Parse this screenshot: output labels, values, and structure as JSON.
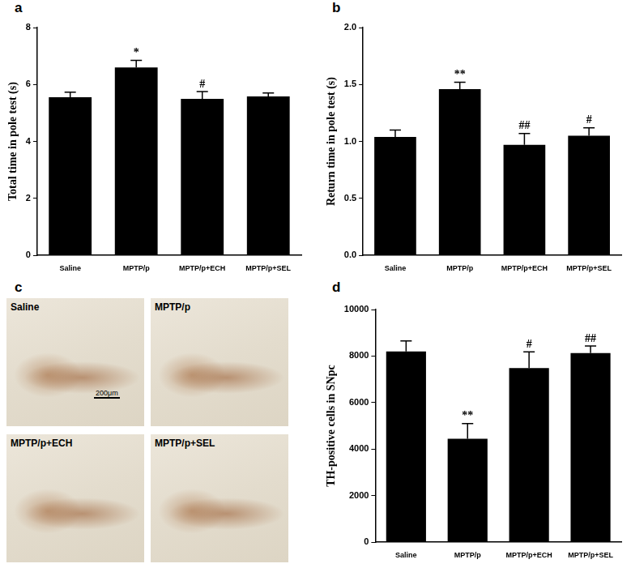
{
  "chart_data": [
    {
      "panel": "a",
      "type": "bar",
      "y_label": "Total time in pole test (s)",
      "categories": [
        "Saline",
        "MPTP/p",
        "MPTP/p+ECH",
        "MPTP/p+SEL"
      ],
      "values": [
        5.55,
        6.6,
        5.5,
        5.58
      ],
      "errors": [
        0.18,
        0.25,
        0.25,
        0.12
      ],
      "significance": [
        null,
        "*",
        "#",
        null
      ],
      "color": "#000000",
      "ylim": [
        0,
        8
      ],
      "yticks": [
        0,
        2,
        4,
        6,
        8
      ],
      "grid": false
    },
    {
      "panel": "b",
      "type": "bar",
      "y_label": "Return time in pole test (s)",
      "categories": [
        "Saline",
        "MPTP/p",
        "MPTP/p+ECH",
        "MPTP/p+SEL"
      ],
      "values": [
        1.04,
        1.46,
        0.97,
        1.05
      ],
      "errors": [
        0.06,
        0.06,
        0.1,
        0.07
      ],
      "significance": [
        null,
        "**",
        "##",
        "#"
      ],
      "color": "#000000",
      "ylim": [
        0,
        2
      ],
      "yticks": [
        {
          "value": 0,
          "label": "0.0"
        },
        {
          "value": 0.5,
          "label": "0.5"
        },
        {
          "value": 1,
          "label": "1.0"
        },
        {
          "value": 1.5,
          "label": "1.5"
        },
        {
          "value": 2,
          "label": "2.0"
        }
      ],
      "grid": false
    },
    {
      "panel": "c",
      "type": "image",
      "images": [
        "Saline",
        "MPTP/p",
        "MPTP/p+ECH",
        "MPTP/p+SEL"
      ],
      "scale_bar": "200μm"
    },
    {
      "panel": "d",
      "type": "bar",
      "y_label": "TH-positive cells in SNpc",
      "categories": [
        "Saline",
        "MPTP/p",
        "MPTP/p+ECH",
        "MPTP/p+SEL"
      ],
      "values": [
        8200,
        4450,
        7480,
        8130
      ],
      "errors": [
        450,
        650,
        700,
        300
      ],
      "significance": [
        null,
        "**",
        "#",
        "##"
      ],
      "color": "#000000",
      "ylim": [
        0,
        10000
      ],
      "yticks": [
        0,
        2000,
        4000,
        6000,
        8000,
        10000
      ],
      "grid": false
    }
  ]
}
